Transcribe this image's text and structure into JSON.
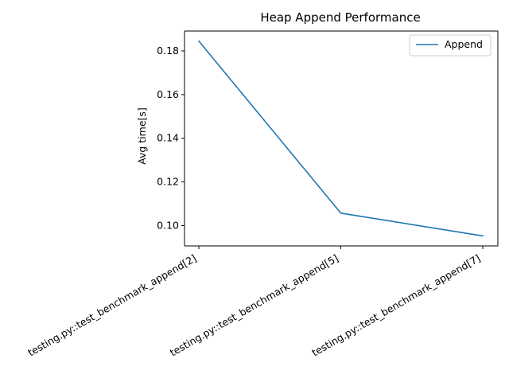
{
  "chart_data": {
    "type": "line",
    "title": "Heap Append Performance",
    "xlabel": "",
    "ylabel": "Avg time[s]",
    "categories": [
      "testing.py::test_benchmark_append[2]",
      "testing.py::test_benchmark_append[5]",
      "testing.py::test_benchmark_append[7]"
    ],
    "series": [
      {
        "name": "Append",
        "values": [
          0.1845,
          0.1057,
          0.0953
        ],
        "color": "#1f77b4"
      }
    ],
    "ylim": [
      0.0907,
      0.1891
    ],
    "yticks": [
      0.1,
      0.12,
      0.14,
      0.16,
      0.18
    ],
    "ytick_labels": [
      "0.10",
      "0.12",
      "0.14",
      "0.16",
      "0.18"
    ],
    "grid": false,
    "legend_position": "top-right"
  }
}
